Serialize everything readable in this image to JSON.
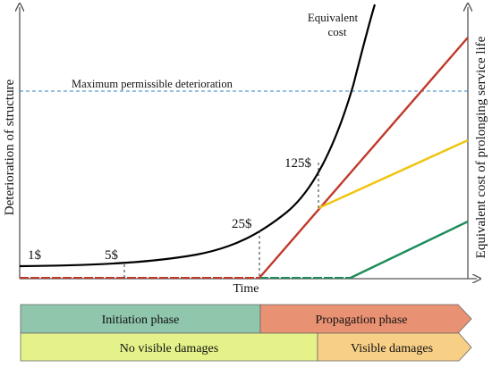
{
  "axes": {
    "xlabel": "Time",
    "ylabel_left": "Deterioration of structure",
    "ylabel_right": "Equivalent cost of prolonging service life"
  },
  "threshold": {
    "label": "Maximum permissible deterioration",
    "color": "#2e86c1"
  },
  "curve": {
    "label_line1": "Equivalent",
    "label_line2": "cost",
    "color": "#000000"
  },
  "cost_points": [
    "1$",
    "5$",
    "25$",
    "125$"
  ],
  "lines": {
    "red": "#c0392b",
    "yellow": "#f1c40f",
    "green": "#1e8c5a"
  },
  "phases": {
    "initiation": {
      "label": "Initiation phase",
      "color": "#8fc6ac"
    },
    "propagation": {
      "label": "Propagation phase",
      "color": "#e99273"
    },
    "no_visible": {
      "label": "No visible damages",
      "color": "#e5f28a"
    },
    "visible": {
      "label": "Visible damages",
      "color": "#f8cf86"
    }
  }
}
